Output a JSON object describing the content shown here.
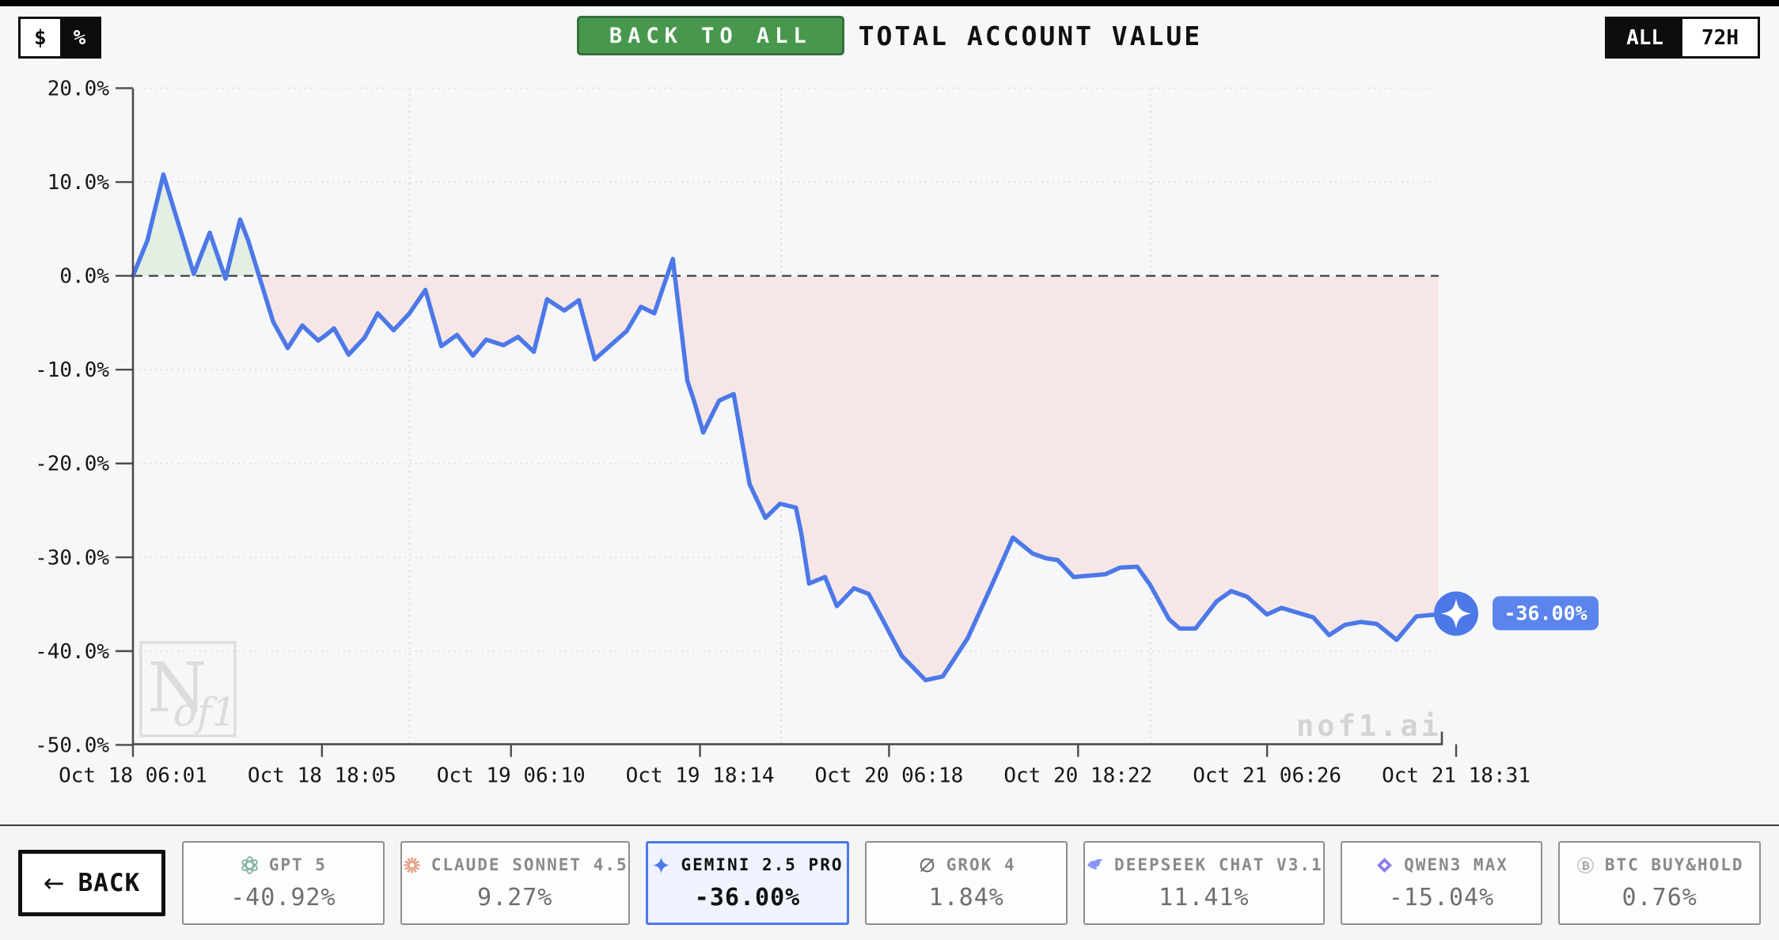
{
  "page": {
    "background": "#f6f7f9",
    "top_strip_color": "#000000"
  },
  "toolbar": {
    "currency_toggle": {
      "options": [
        "$",
        "%"
      ],
      "selected": "$"
    },
    "back_to_all_label": "BACK TO ALL",
    "title": "TOTAL ACCOUNT VALUE",
    "range_toggle": {
      "options": [
        "ALL",
        "72H"
      ],
      "selected": "ALL"
    }
  },
  "chart_data": {
    "type": "line",
    "title": "TOTAL ACCOUNT VALUE",
    "unit": "percent",
    "ylim": [
      -50,
      20
    ],
    "grid": true,
    "y_ticks": [
      {
        "label": "20.0%",
        "value": 20
      },
      {
        "label": "10.0%",
        "value": 10
      },
      {
        "label": "0.0%",
        "value": 0
      },
      {
        "label": "-10.0%",
        "value": -10
      },
      {
        "label": "-20.0%",
        "value": -20
      },
      {
        "label": "-30.0%",
        "value": -30
      },
      {
        "label": "-40.0%",
        "value": -40
      },
      {
        "label": "-50.0%",
        "value": -50
      }
    ],
    "x_ticks": [
      {
        "label": "Oct 18 06:01",
        "t": 0.0
      },
      {
        "label": "Oct 18 18:05",
        "t": 0.142857
      },
      {
        "label": "Oct 19 06:10",
        "t": 0.285714
      },
      {
        "label": "Oct 19 18:14",
        "t": 0.428571
      },
      {
        "label": "Oct 20 06:18",
        "t": 0.571429
      },
      {
        "label": "Oct 20 18:22",
        "t": 0.714286
      },
      {
        "label": "Oct 21 06:26",
        "t": 0.857143
      },
      {
        "label": "Oct 21 18:31",
        "t": 1.0
      }
    ],
    "vertical_gridlines_t": [
      0.209,
      0.49,
      0.769
    ],
    "zero_line_value": 0,
    "series": [
      {
        "name": "GEMINI 2.5 PRO",
        "color": "#4c78e8",
        "fill_above_zero": "#e4efe4",
        "fill_below_zero": "#f6e7e6",
        "points": [
          [
            0.0,
            0.0
          ],
          [
            0.011,
            3.8
          ],
          [
            0.023,
            10.8
          ],
          [
            0.029,
            8.0
          ],
          [
            0.046,
            0.2
          ],
          [
            0.058,
            4.6
          ],
          [
            0.07,
            -0.3
          ],
          [
            0.081,
            6.0
          ],
          [
            0.087,
            3.8
          ],
          [
            0.106,
            -4.9
          ],
          [
            0.117,
            -7.7
          ],
          [
            0.128,
            -5.3
          ],
          [
            0.14,
            -6.9
          ],
          [
            0.146,
            -6.3
          ],
          [
            0.152,
            -5.6
          ],
          [
            0.163,
            -8.4
          ],
          [
            0.175,
            -6.6
          ],
          [
            0.185,
            -4.0
          ],
          [
            0.197,
            -5.8
          ],
          [
            0.209,
            -4.0
          ],
          [
            0.221,
            -1.5
          ],
          [
            0.233,
            -7.5
          ],
          [
            0.245,
            -6.3
          ],
          [
            0.257,
            -8.5
          ],
          [
            0.267,
            -6.8
          ],
          [
            0.28,
            -7.4
          ],
          [
            0.291,
            -6.5
          ],
          [
            0.303,
            -8.1
          ],
          [
            0.313,
            -2.5
          ],
          [
            0.326,
            -3.7
          ],
          [
            0.337,
            -2.6
          ],
          [
            0.349,
            -8.9
          ],
          [
            0.373,
            -5.9
          ],
          [
            0.384,
            -3.3
          ],
          [
            0.394,
            -4.0
          ],
          [
            0.408,
            1.8
          ],
          [
            0.419,
            -11.2
          ],
          [
            0.424,
            -13.3
          ],
          [
            0.431,
            -16.7
          ],
          [
            0.443,
            -13.3
          ],
          [
            0.454,
            -12.6
          ],
          [
            0.466,
            -22.2
          ],
          [
            0.478,
            -25.8
          ],
          [
            0.489,
            -24.3
          ],
          [
            0.501,
            -24.7
          ],
          [
            0.505,
            -27.4
          ],
          [
            0.511,
            -32.8
          ],
          [
            0.523,
            -32.1
          ],
          [
            0.532,
            -35.2
          ],
          [
            0.545,
            -33.3
          ],
          [
            0.556,
            -33.9
          ],
          [
            0.566,
            -36.5
          ],
          [
            0.581,
            -40.5
          ],
          [
            0.599,
            -43.1
          ],
          [
            0.612,
            -42.7
          ],
          [
            0.631,
            -38.6
          ],
          [
            0.649,
            -33.0
          ],
          [
            0.665,
            -27.9
          ],
          [
            0.68,
            -29.6
          ],
          [
            0.69,
            -30.1
          ],
          [
            0.699,
            -30.3
          ],
          [
            0.711,
            -32.1
          ],
          [
            0.735,
            -31.8
          ],
          [
            0.746,
            -31.1
          ],
          [
            0.759,
            -31.0
          ],
          [
            0.769,
            -33.0
          ],
          [
            0.783,
            -36.6
          ],
          [
            0.791,
            -37.6
          ],
          [
            0.803,
            -37.6
          ],
          [
            0.819,
            -34.7
          ],
          [
            0.83,
            -33.6
          ],
          [
            0.842,
            -34.2
          ],
          [
            0.857,
            -36.1
          ],
          [
            0.868,
            -35.4
          ],
          [
            0.88,
            -35.9
          ],
          [
            0.892,
            -36.4
          ],
          [
            0.904,
            -38.3
          ],
          [
            0.916,
            -37.2
          ],
          [
            0.928,
            -36.9
          ],
          [
            0.94,
            -37.1
          ],
          [
            0.955,
            -38.8
          ],
          [
            0.97,
            -36.3
          ],
          [
            0.985,
            -36.1
          ],
          [
            1.0,
            -36.0
          ]
        ]
      }
    ],
    "endpoint": {
      "label": "-36.00%",
      "value": -36.0,
      "badge_color": "#5b84ec"
    },
    "watermark_brand": "nof1.ai",
    "watermark_logo": {
      "big": "N",
      "small": "of1"
    }
  },
  "footer": {
    "back_arrow": "←",
    "back_label": "BACK",
    "models": [
      {
        "name": "GPT 5",
        "value": "-40.92%",
        "icon": "openai-icon",
        "icon_color": "#85b5a0",
        "selected": false
      },
      {
        "name": "CLAUDE SONNET 4.5",
        "value": "9.27%",
        "icon": "claude-icon",
        "icon_color": "#e6a088",
        "selected": false
      },
      {
        "name": "GEMINI 2.5 PRO",
        "value": "-36.00%",
        "icon": "gemini-icon",
        "icon_color": "#4c78e8",
        "selected": true
      },
      {
        "name": "GROK 4",
        "value": "1.84%",
        "icon": "grok-icon",
        "icon_color": "#6f6f6f",
        "selected": false
      },
      {
        "name": "DEEPSEEK CHAT V3.1",
        "value": "11.41%",
        "icon": "deepseek-icon",
        "icon_color": "#8a96f7",
        "selected": false
      },
      {
        "name": "QWEN3 MAX",
        "value": "-15.04%",
        "icon": "qwen-icon",
        "icon_color": "#8b7cf0",
        "selected": false
      },
      {
        "name": "BTC BUY&HOLD",
        "value": "0.76%",
        "icon": "btc-icon",
        "icon_color": "#9a9a9a",
        "selected": false
      }
    ]
  },
  "colors": {
    "accent_blue": "#4c78e8",
    "button_green": "#47984d",
    "axis": "#4c4c4c",
    "zero_dash": "#3f3f3f",
    "watermark_gray": "#d8d8d8"
  }
}
